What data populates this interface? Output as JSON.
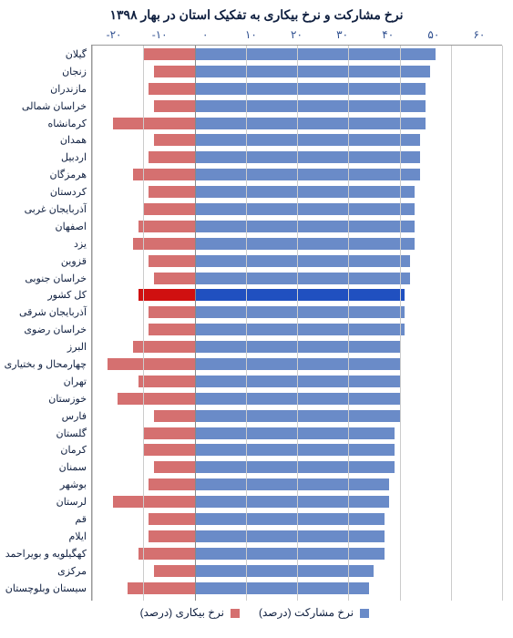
{
  "type": "bar",
  "title": "نرخ مشارکت و نرخ بیکاری به تفکیک استان در بهار ۱۳۹۸",
  "xAxis": {
    "min": -20,
    "max": 60,
    "ticks": [
      -20,
      -10,
      0,
      10,
      20,
      30,
      40,
      50,
      60
    ],
    "tickLabels": [
      "۲۰-",
      "۱۰-",
      "۰",
      "۱۰",
      "۲۰",
      "۳۰",
      "۴۰",
      "۵۰",
      "۶۰"
    ]
  },
  "colors": {
    "participation": "#6a8bc8",
    "unemployment": "#d57070",
    "participationTotal": "#2050c0",
    "unemploymentTotal": "#d01010",
    "grid": "#ccc",
    "zero": "#888",
    "text": "#102040",
    "bg": "#fff"
  },
  "legend": {
    "participation": "نرخ مشارکت (درصد)",
    "unemployment": "نرخ بیکاری (درصد)"
  },
  "rows": [
    {
      "label": "گیلان",
      "p": 47,
      "u": -10
    },
    {
      "label": "زنجان",
      "p": 46,
      "u": -8
    },
    {
      "label": "مازندران",
      "p": 45,
      "u": -9
    },
    {
      "label": "خراسان شمالی",
      "p": 45,
      "u": -8
    },
    {
      "label": "کرمانشاه",
      "p": 45,
      "u": -16
    },
    {
      "label": "همدان",
      "p": 44,
      "u": -8
    },
    {
      "label": "اردبیل",
      "p": 44,
      "u": -9
    },
    {
      "label": "هرمزگان",
      "p": 44,
      "u": -12
    },
    {
      "label": "کردستان",
      "p": 43,
      "u": -9
    },
    {
      "label": "آذربایجان غربی",
      "p": 43,
      "u": -10
    },
    {
      "label": "اصفهان",
      "p": 43,
      "u": -11
    },
    {
      "label": "یزد",
      "p": 43,
      "u": -12
    },
    {
      "label": "قزوین",
      "p": 42,
      "u": -9
    },
    {
      "label": "خراسان جنوبی",
      "p": 42,
      "u": -8
    },
    {
      "label": "کل کشور",
      "p": 41,
      "u": -11,
      "total": true
    },
    {
      "label": "آذربایجان شرقی",
      "p": 41,
      "u": -9
    },
    {
      "label": "خراسان رضوی",
      "p": 41,
      "u": -9
    },
    {
      "label": "البرز",
      "p": 40,
      "u": -12
    },
    {
      "label": "چهارمحال و بختیاری",
      "p": 40,
      "u": -17
    },
    {
      "label": "تهران",
      "p": 40,
      "u": -11
    },
    {
      "label": "خوزستان",
      "p": 40,
      "u": -15
    },
    {
      "label": "فارس",
      "p": 40,
      "u": -8
    },
    {
      "label": "گلستان",
      "p": 39,
      "u": -10
    },
    {
      "label": "کرمان",
      "p": 39,
      "u": -10
    },
    {
      "label": "سمنان",
      "p": 39,
      "u": -8
    },
    {
      "label": "بوشهر",
      "p": 38,
      "u": -9
    },
    {
      "label": "لرستان",
      "p": 38,
      "u": -16
    },
    {
      "label": "قم",
      "p": 37,
      "u": -9
    },
    {
      "label": "ایلام",
      "p": 37,
      "u": -9
    },
    {
      "label": "کهگیلویه و بویراحمد",
      "p": 37,
      "u": -11
    },
    {
      "label": "مرکزی",
      "p": 35,
      "u": -8
    },
    {
      "label": "سیستان وبلوچستان",
      "p": 34,
      "u": -13
    }
  ]
}
